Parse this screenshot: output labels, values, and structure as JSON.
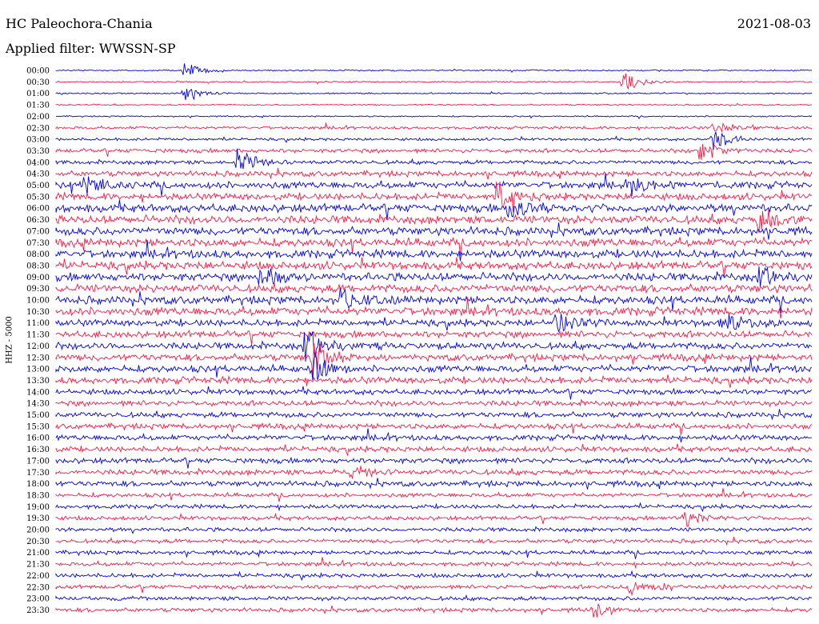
{
  "header": {
    "station": "HC Paleochora-Chania",
    "date": "2021-08-03",
    "filter": "Applied filter: WWSSN-SP"
  },
  "colors": {
    "blue": "#0000ee",
    "red": "#ff1744"
  },
  "chart_data": {
    "type": "line",
    "title": "HC Paleochora-Chania",
    "ylabel": "HHZ - 5000",
    "row_labels": [
      "00:00",
      "00:30",
      "01:00",
      "01:30",
      "02:00",
      "02:30",
      "03:00",
      "03:30",
      "04:00",
      "04:30",
      "05:00",
      "05:30",
      "06:00",
      "06:30",
      "07:00",
      "07:30",
      "08:00",
      "08:30",
      "09:00",
      "09:30",
      "10:00",
      "10:30",
      "11:00",
      "11:30",
      "12:00",
      "12:30",
      "13:00",
      "13:30",
      "14:00",
      "14:30",
      "15:00",
      "15:30",
      "16:00",
      "16:30",
      "17:00",
      "17:30",
      "18:00",
      "18:30",
      "19:00",
      "19:30",
      "20:00",
      "20:30",
      "21:00",
      "21:30",
      "22:00",
      "22:30",
      "23:00",
      "23:30"
    ],
    "row_colors": [
      "blue",
      "red"
    ],
    "noise_level": [
      1,
      1,
      1,
      1,
      1,
      2,
      2,
      3,
      3,
      4,
      5,
      5,
      6,
      6,
      6,
      6,
      6,
      6,
      6,
      6,
      6,
      6,
      5,
      5,
      5,
      5,
      5,
      5,
      4,
      4,
      4,
      4,
      4,
      4,
      4,
      4,
      4,
      3,
      3,
      3,
      3,
      3,
      3,
      3,
      3,
      3,
      3,
      3
    ],
    "events": [
      {
        "row": 0,
        "pos": 0.17,
        "amp": 14
      },
      {
        "row": 1,
        "pos": 0.75,
        "amp": 16
      },
      {
        "row": 2,
        "pos": 0.17,
        "amp": 12
      },
      {
        "row": 5,
        "pos": 0.87,
        "amp": 12
      },
      {
        "row": 6,
        "pos": 0.87,
        "amp": 18
      },
      {
        "row": 7,
        "pos": 0.85,
        "amp": 20
      },
      {
        "row": 8,
        "pos": 0.24,
        "amp": 22
      },
      {
        "row": 10,
        "pos": 0.04,
        "amp": 18
      },
      {
        "row": 10,
        "pos": 0.76,
        "amp": 16
      },
      {
        "row": 11,
        "pos": 0.58,
        "amp": 22
      },
      {
        "row": 12,
        "pos": 0.6,
        "amp": 20
      },
      {
        "row": 13,
        "pos": 0.93,
        "amp": 18
      },
      {
        "row": 18,
        "pos": 0.27,
        "amp": 20
      },
      {
        "row": 18,
        "pos": 0.93,
        "amp": 18
      },
      {
        "row": 20,
        "pos": 0.38,
        "amp": 14
      },
      {
        "row": 22,
        "pos": 0.66,
        "amp": 18
      },
      {
        "row": 22,
        "pos": 0.88,
        "amp": 16
      },
      {
        "row": 24,
        "pos": 0.33,
        "amp": 34
      },
      {
        "row": 25,
        "pos": 0.34,
        "amp": 30
      },
      {
        "row": 26,
        "pos": 0.34,
        "amp": 22
      },
      {
        "row": 35,
        "pos": 0.39,
        "amp": 12
      },
      {
        "row": 39,
        "pos": 0.83,
        "amp": 16
      },
      {
        "row": 45,
        "pos": 0.76,
        "amp": 14
      },
      {
        "row": 47,
        "pos": 0.71,
        "amp": 10
      }
    ]
  }
}
